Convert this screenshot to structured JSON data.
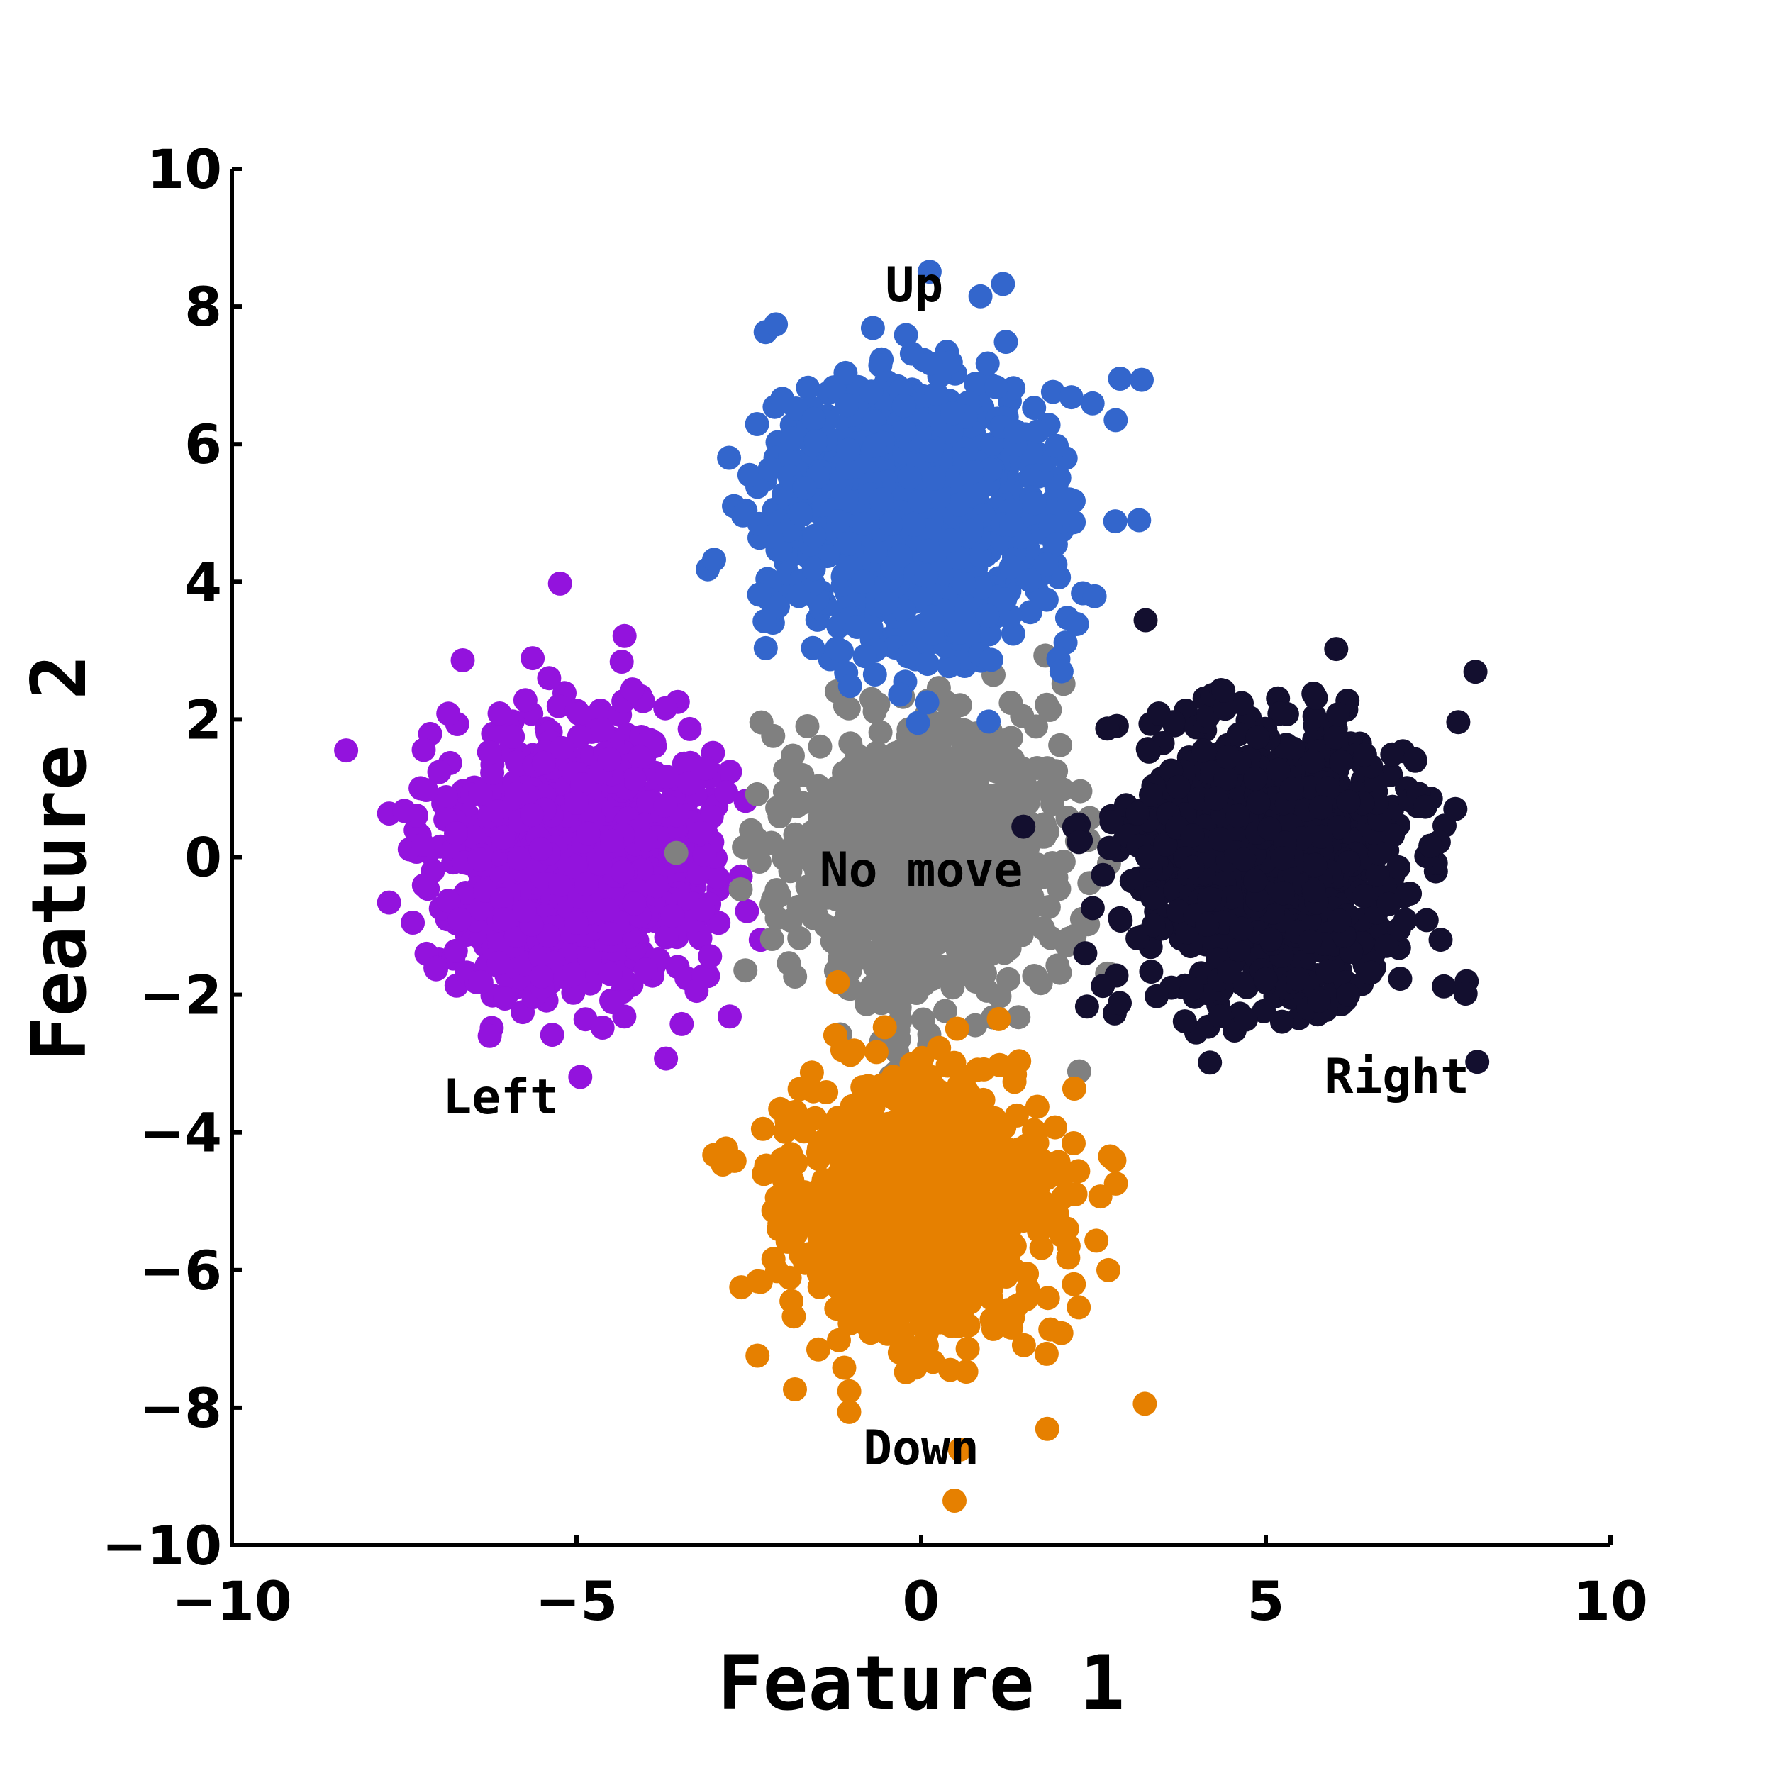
{
  "chart_data": {
    "type": "scatter",
    "title": "",
    "xlabel": "Feature 1",
    "ylabel": "Feature 2",
    "xlim": [
      -10,
      10
    ],
    "ylim": [
      -10,
      10
    ],
    "xticks": [
      -10,
      -5,
      0,
      5,
      10
    ],
    "yticks": [
      -10,
      -8,
      -6,
      -4,
      -2,
      0,
      2,
      4,
      6,
      8,
      10
    ],
    "grid": false,
    "legend": "none",
    "series": [
      {
        "name": "Left",
        "color": "#9313DD",
        "center": [
          -5,
          0
        ],
        "spread": 1,
        "label_pos": [
          -6.1,
          -3.5
        ]
      },
      {
        "name": "No move",
        "color": "#808080",
        "center": [
          0,
          0
        ],
        "spread": 1,
        "label_pos": [
          0,
          -0.2
        ]
      },
      {
        "name": "Right",
        "color": "#130F2F",
        "center": [
          5,
          0
        ],
        "spread": 1,
        "label_pos": [
          6.9,
          -3.2
        ]
      },
      {
        "name": "Up",
        "color": "#3366CC",
        "center": [
          0,
          5
        ],
        "spread": 1,
        "label_pos": [
          -0.1,
          8.3
        ]
      },
      {
        "name": "Down",
        "color": "#E68000",
        "center": [
          0,
          -5
        ],
        "spread": 1,
        "label_pos": [
          0,
          -8.6
        ]
      }
    ]
  }
}
